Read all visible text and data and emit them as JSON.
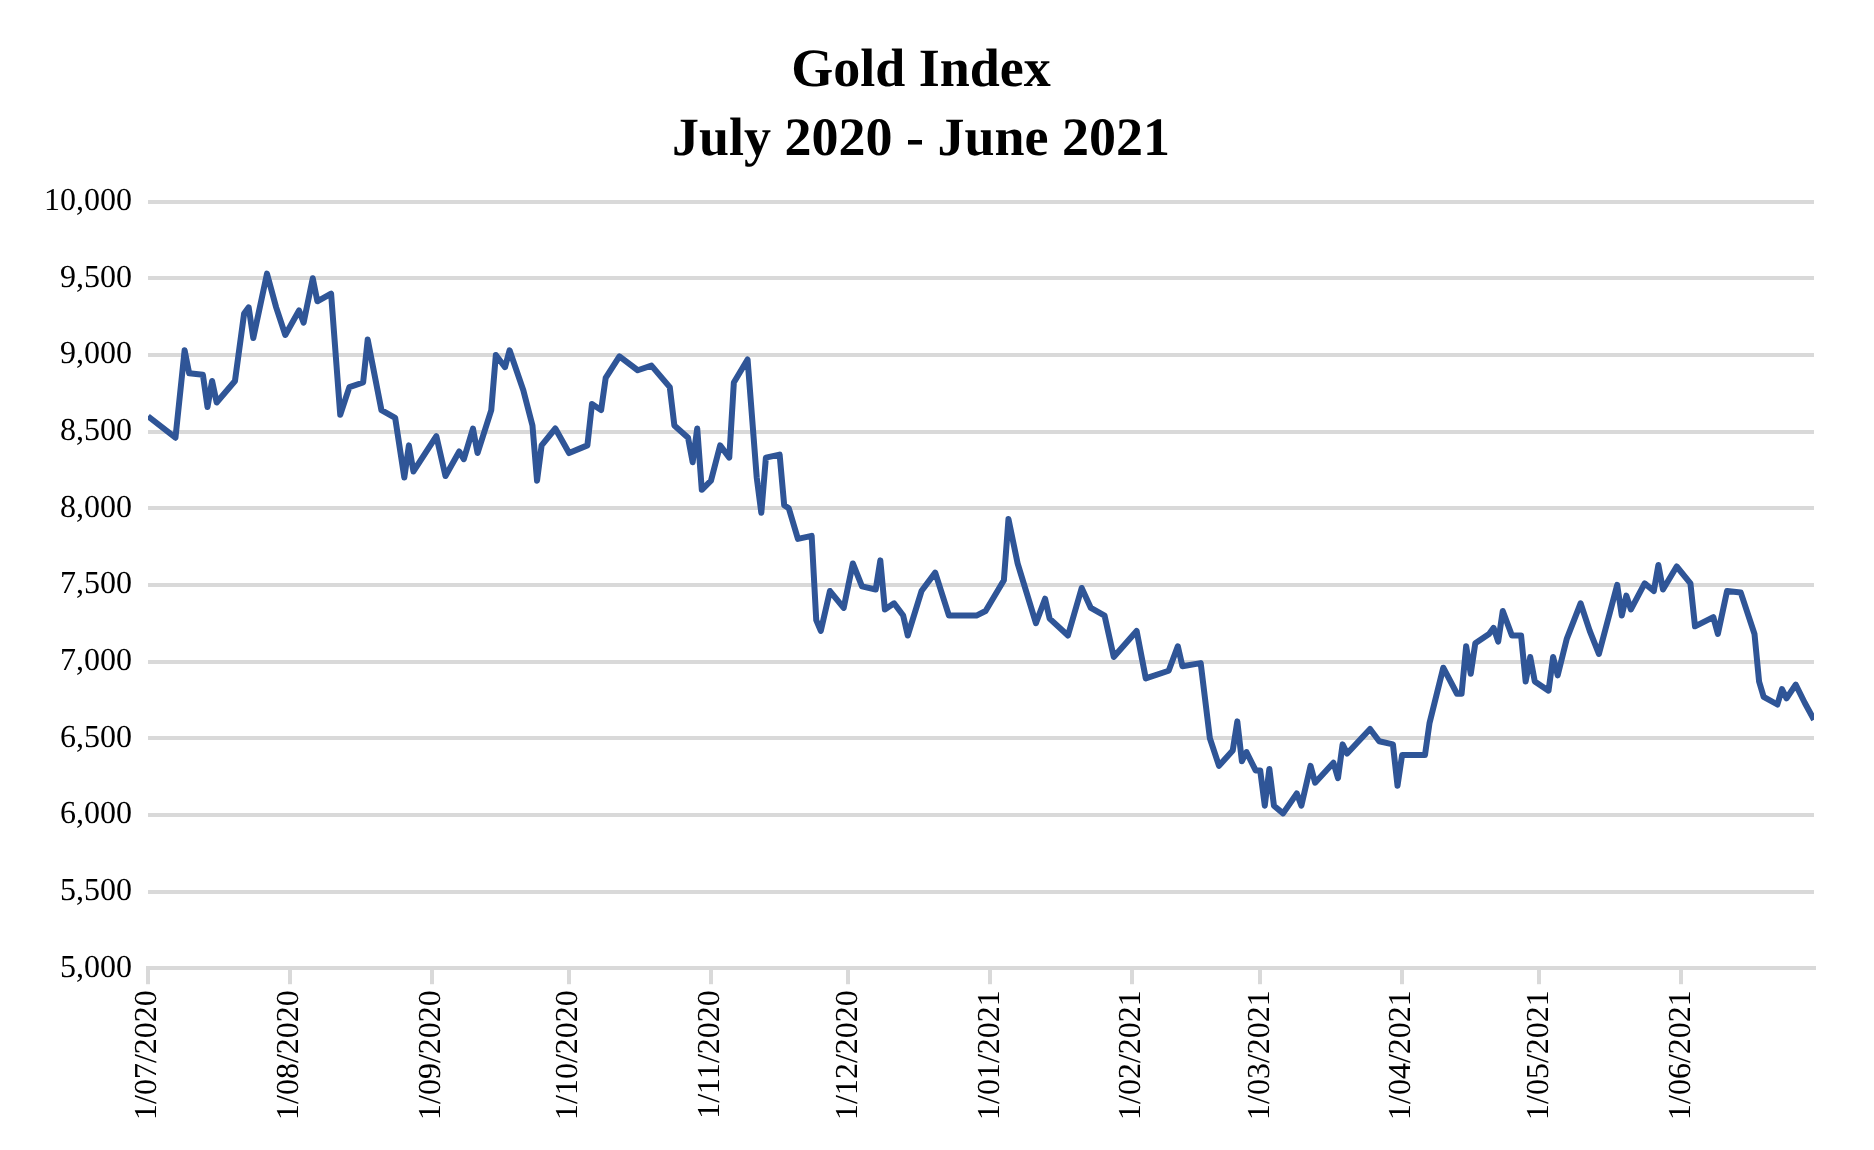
{
  "chart_data": {
    "type": "line",
    "title": "Gold Index",
    "subtitle": "July 2020 - June 2021",
    "x": [
      "2020-07-01",
      "2020-07-07",
      "2020-07-09",
      "2020-07-10",
      "2020-07-13",
      "2020-07-14",
      "2020-07-15",
      "2020-07-16",
      "2020-07-20",
      "2020-07-22",
      "2020-07-23",
      "2020-07-24",
      "2020-07-27",
      "2020-07-29",
      "2020-07-31",
      "2020-08-03",
      "2020-08-04",
      "2020-08-06",
      "2020-08-07",
      "2020-08-10",
      "2020-08-12",
      "2020-08-14",
      "2020-08-17",
      "2020-08-18",
      "2020-08-21",
      "2020-08-24",
      "2020-08-26",
      "2020-08-27",
      "2020-08-28",
      "2020-09-02",
      "2020-09-04",
      "2020-09-07",
      "2020-09-08",
      "2020-09-10",
      "2020-09-11",
      "2020-09-14",
      "2020-09-15",
      "2020-09-17",
      "2020-09-18",
      "2020-09-21",
      "2020-09-23",
      "2020-09-24",
      "2020-09-25",
      "2020-09-28",
      "2020-10-01",
      "2020-10-05",
      "2020-10-06",
      "2020-10-08",
      "2020-10-09",
      "2020-10-12",
      "2020-10-16",
      "2020-10-19",
      "2020-10-23",
      "2020-10-24",
      "2020-10-27",
      "2020-10-28",
      "2020-10-29",
      "2020-10-30",
      "2020-11-01",
      "2020-11-03",
      "2020-11-05",
      "2020-11-06",
      "2020-11-09",
      "2020-11-11",
      "2020-11-12",
      "2020-11-13",
      "2020-11-16",
      "2020-11-17",
      "2020-11-18",
      "2020-11-20",
      "2020-11-23",
      "2020-11-24",
      "2020-11-25",
      "2020-11-27",
      "2020-11-30",
      "2020-12-02",
      "2020-12-04",
      "2020-12-07",
      "2020-12-08",
      "2020-12-09",
      "2020-12-11",
      "2020-12-13",
      "2020-12-14",
      "2020-12-17",
      "2020-12-20",
      "2020-12-23",
      "2020-12-29",
      "2020-12-31",
      "2021-01-04",
      "2021-01-05",
      "2021-01-07",
      "2021-01-11",
      "2021-01-13",
      "2021-01-14",
      "2021-01-18",
      "2021-01-21",
      "2021-01-23",
      "2021-01-26",
      "2021-01-28",
      "2021-02-02",
      "2021-02-04",
      "2021-02-09",
      "2021-02-11",
      "2021-02-12",
      "2021-02-16",
      "2021-02-18",
      "2021-02-20",
      "2021-02-23",
      "2021-02-24",
      "2021-02-25",
      "2021-02-26",
      "2021-02-28",
      "2021-03-01",
      "2021-03-02",
      "2021-03-03",
      "2021-03-04",
      "2021-03-06",
      "2021-03-09",
      "2021-03-10",
      "2021-03-12",
      "2021-03-13",
      "2021-03-17",
      "2021-03-18",
      "2021-03-19",
      "2021-03-20",
      "2021-03-25",
      "2021-03-27",
      "2021-03-30",
      "2021-03-31",
      "2021-04-01",
      "2021-04-06",
      "2021-04-07",
      "2021-04-10",
      "2021-04-13",
      "2021-04-14",
      "2021-04-15",
      "2021-04-16",
      "2021-04-17",
      "2021-04-20",
      "2021-04-21",
      "2021-04-22",
      "2021-04-23",
      "2021-04-25",
      "2021-04-27",
      "2021-04-28",
      "2021-04-29",
      "2021-04-30",
      "2021-05-03",
      "2021-05-04",
      "2021-05-05",
      "2021-05-07",
      "2021-05-10",
      "2021-05-12",
      "2021-05-14",
      "2021-05-18",
      "2021-05-19",
      "2021-05-20",
      "2021-05-21",
      "2021-05-24",
      "2021-05-26",
      "2021-05-27",
      "2021-05-28",
      "2021-05-31",
      "2021-06-03",
      "2021-06-04",
      "2021-06-08",
      "2021-06-09",
      "2021-06-11",
      "2021-06-14",
      "2021-06-17",
      "2021-06-18",
      "2021-06-19",
      "2021-06-22",
      "2021-06-23",
      "2021-06-24",
      "2021-06-26",
      "2021-06-28",
      "2021-06-30"
    ],
    "series": [
      {
        "color": "#2f5597",
        "values": [
          8600,
          8460,
          9030,
          8880,
          8870,
          8660,
          8830,
          8690,
          8830,
          9270,
          9310,
          9110,
          9530,
          9310,
          9130,
          9290,
          9210,
          9500,
          9350,
          9400,
          8610,
          8790,
          8820,
          9100,
          8640,
          8590,
          8200,
          8410,
          8240,
          8470,
          8210,
          8370,
          8320,
          8520,
          8360,
          8640,
          9000,
          8920,
          9030,
          8770,
          8540,
          8180,
          8410,
          8520,
          8360,
          8410,
          8680,
          8640,
          8850,
          8990,
          8900,
          8930,
          8790,
          8540,
          8460,
          8300,
          8520,
          8120,
          8180,
          8410,
          8330,
          8820,
          8970,
          8200,
          7970,
          8330,
          8350,
          8020,
          8000,
          7800,
          7820,
          7270,
          7200,
          7460,
          7350,
          7640,
          7490,
          7470,
          7660,
          7340,
          7380,
          7300,
          7170,
          7460,
          7580,
          7300,
          7300,
          7330,
          7530,
          7930,
          7640,
          7250,
          7410,
          7280,
          7170,
          7480,
          7350,
          7300,
          7030,
          7200,
          6890,
          6940,
          7100,
          6970,
          6990,
          6500,
          6320,
          6420,
          6610,
          6350,
          6410,
          6290,
          6290,
          6060,
          6300,
          6060,
          6010,
          6140,
          6060,
          6320,
          6210,
          6340,
          6240,
          6460,
          6400,
          6560,
          6480,
          6460,
          6190,
          6390,
          6390,
          6600,
          6960,
          6790,
          6790,
          7100,
          6920,
          7120,
          7180,
          7220,
          7130,
          7330,
          7170,
          7170,
          6870,
          7030,
          6870,
          6810,
          7030,
          6910,
          7150,
          7380,
          7200,
          7050,
          7500,
          7300,
          7430,
          7340,
          7510,
          7460,
          7630,
          7470,
          7620,
          7510,
          7230,
          7290,
          7180,
          7460,
          7450,
          7180,
          6870,
          6770,
          6720,
          6820,
          6760,
          6850,
          6730,
          6620
        ]
      }
    ],
    "xlim": [
      "2020-07-01",
      "2021-06-30"
    ],
    "xticks": [
      {
        "value": "2020-07-01",
        "label": "1/07/2020"
      },
      {
        "value": "2020-08-01",
        "label": "1/08/2020"
      },
      {
        "value": "2020-09-01",
        "label": "1/09/2020"
      },
      {
        "value": "2020-10-01",
        "label": "1/10/2020"
      },
      {
        "value": "2020-11-01",
        "label": "1/11/2020"
      },
      {
        "value": "2020-12-01",
        "label": "1/12/2020"
      },
      {
        "value": "2021-01-01",
        "label": "1/01/2021"
      },
      {
        "value": "2021-02-01",
        "label": "1/02/2021"
      },
      {
        "value": "2021-03-01",
        "label": "1/03/2021"
      },
      {
        "value": "2021-04-01",
        "label": "1/04/2021"
      },
      {
        "value": "2021-05-01",
        "label": "1/05/2021"
      },
      {
        "value": "2021-06-01",
        "label": "1/06/2021"
      }
    ],
    "ylim": [
      5000,
      10000
    ],
    "yticks": [
      {
        "value": 5000,
        "label": "5,000"
      },
      {
        "value": 5500,
        "label": "5,500"
      },
      {
        "value": 6000,
        "label": "6,000"
      },
      {
        "value": 6500,
        "label": "6,500"
      },
      {
        "value": 7000,
        "label": "7,000"
      },
      {
        "value": 7500,
        "label": "7,500"
      },
      {
        "value": 8000,
        "label": "8,000"
      },
      {
        "value": 8500,
        "label": "8,500"
      },
      {
        "value": 9000,
        "label": "9,000"
      },
      {
        "value": 9500,
        "label": "9,500"
      },
      {
        "value": 10000,
        "label": "10,000"
      }
    ],
    "grid": "y",
    "marker": "none",
    "line_style": "solid",
    "legend": false
  }
}
